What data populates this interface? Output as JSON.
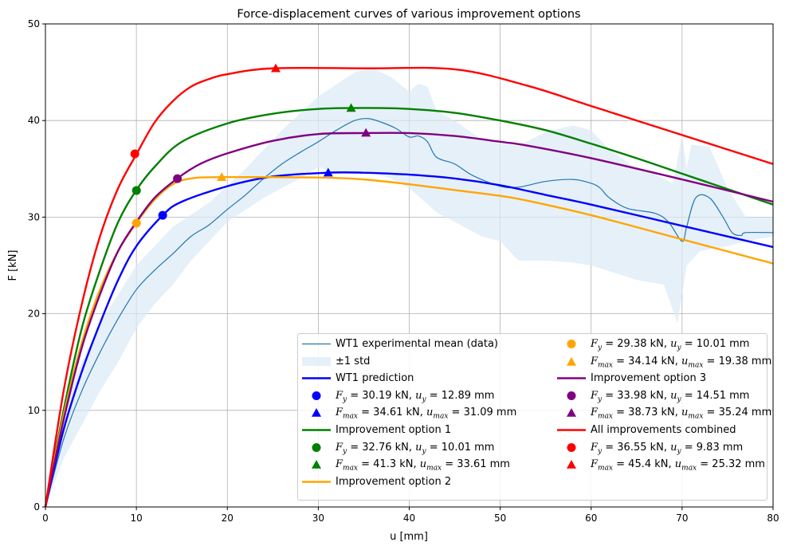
{
  "chart_data": {
    "type": "line",
    "title": "Force-displacement curves of various improvement options",
    "xlabel": "u [mm]",
    "ylabel": "F [kN]",
    "xlim": [
      0,
      80
    ],
    "ylim": [
      0,
      50
    ],
    "xticks": [
      0,
      10,
      20,
      30,
      40,
      50,
      60,
      70,
      80
    ],
    "yticks": [
      0,
      10,
      20,
      30,
      40,
      50
    ],
    "grid": true,
    "legend_placement": "lower-right",
    "experimental": {
      "name": "WT1 experimental mean (data)",
      "color": "#1f77b4",
      "points": [
        [
          0,
          0
        ],
        [
          2,
          7
        ],
        [
          4,
          12
        ],
        [
          6,
          16
        ],
        [
          8,
          19.5
        ],
        [
          10,
          22.5
        ],
        [
          12,
          24.5
        ],
        [
          14,
          26.2
        ],
        [
          16,
          28
        ],
        [
          18,
          29.2
        ],
        [
          20,
          30.8
        ],
        [
          22,
          32.3
        ],
        [
          24,
          34
        ],
        [
          26,
          35.5
        ],
        [
          28,
          36.7
        ],
        [
          30,
          37.8
        ],
        [
          32,
          39
        ],
        [
          34,
          40
        ],
        [
          35.5,
          40.2
        ],
        [
          37,
          39.8
        ],
        [
          38.5,
          39.2
        ],
        [
          40,
          38.3
        ],
        [
          41,
          38.4
        ],
        [
          42,
          37.8
        ],
        [
          43,
          36.2
        ],
        [
          45,
          35.5
        ],
        [
          47,
          34.3
        ],
        [
          50,
          33.2
        ],
        [
          52,
          33.1
        ],
        [
          55,
          33.7
        ],
        [
          58,
          33.9
        ],
        [
          60,
          33.5
        ],
        [
          61,
          33
        ],
        [
          62,
          32
        ],
        [
          64,
          30.9
        ],
        [
          67,
          30.4
        ],
        [
          68.5,
          29.5
        ],
        [
          70,
          27.5
        ],
        [
          70.5,
          29
        ],
        [
          71.5,
          32
        ],
        [
          73,
          32
        ],
        [
          74.5,
          30
        ],
        [
          75.5,
          28.4
        ],
        [
          76.5,
          28.1
        ],
        [
          77,
          28.4
        ],
        [
          80,
          28.4
        ]
      ]
    },
    "std_band": {
      "name": "±1 std",
      "color": "#dce9f5",
      "upper": [
        [
          0,
          0
        ],
        [
          2,
          10
        ],
        [
          4,
          15
        ],
        [
          6,
          19
        ],
        [
          8,
          22
        ],
        [
          10,
          25
        ],
        [
          14,
          29
        ],
        [
          18,
          31.5
        ],
        [
          22,
          35
        ],
        [
          26,
          39
        ],
        [
          30,
          42.5
        ],
        [
          34,
          45
        ],
        [
          36,
          45.4
        ],
        [
          38,
          44.5
        ],
        [
          40,
          43
        ],
        [
          41,
          43.8
        ],
        [
          42,
          43.5
        ],
        [
          43,
          41
        ],
        [
          45,
          40
        ],
        [
          48,
          38
        ],
        [
          50,
          37.6
        ],
        [
          52,
          37.4
        ],
        [
          55,
          38.8
        ],
        [
          58,
          39.5
        ],
        [
          60,
          39
        ],
        [
          62,
          37
        ],
        [
          65,
          35
        ],
        [
          67,
          34.5
        ],
        [
          69,
          33.5
        ],
        [
          70,
          38.5
        ],
        [
          70.5,
          35
        ],
        [
          71,
          37.5
        ],
        [
          73,
          37.3
        ],
        [
          75,
          33
        ],
        [
          77,
          30
        ],
        [
          80,
          30
        ]
      ],
      "lower": [
        [
          0,
          0
        ],
        [
          2,
          5
        ],
        [
          4,
          8.5
        ],
        [
          6,
          12
        ],
        [
          8,
          15
        ],
        [
          10,
          18.5
        ],
        [
          12,
          21
        ],
        [
          14,
          23
        ],
        [
          16,
          25.5
        ],
        [
          18,
          27.5
        ],
        [
          20,
          29.5
        ],
        [
          24,
          32
        ],
        [
          28,
          34
        ],
        [
          30,
          35.2
        ],
        [
          32,
          34.5
        ],
        [
          35,
          34.8
        ],
        [
          38,
          34
        ],
        [
          40,
          33
        ],
        [
          43,
          30.5
        ],
        [
          46,
          29
        ],
        [
          48,
          28
        ],
        [
          50,
          27.5
        ],
        [
          52,
          25.5
        ],
        [
          55,
          25.5
        ],
        [
          58,
          25.3
        ],
        [
          60,
          25
        ],
        [
          62,
          24.4
        ],
        [
          65,
          23.5
        ],
        [
          68,
          23
        ],
        [
          69.5,
          19
        ],
        [
          70.5,
          25
        ],
        [
          72,
          26.5
        ],
        [
          75,
          27
        ],
        [
          77,
          27.5
        ],
        [
          80,
          28
        ]
      ]
    },
    "series": [
      {
        "name": "WT1 prediction",
        "color": "#0000ff",
        "points": [
          [
            0,
            0
          ],
          [
            2,
            8
          ],
          [
            4,
            14
          ],
          [
            6,
            19
          ],
          [
            8,
            23.5
          ],
          [
            10,
            27
          ],
          [
            12.89,
            30.19
          ],
          [
            15,
            31.6
          ],
          [
            20,
            33.2
          ],
          [
            25,
            34.2
          ],
          [
            31,
            34.6
          ],
          [
            35,
            34.6
          ],
          [
            40,
            34.4
          ],
          [
            45,
            34
          ],
          [
            50,
            33.3
          ],
          [
            55,
            32.3
          ],
          [
            60,
            31.3
          ],
          [
            70,
            29.1
          ],
          [
            80,
            26.9
          ]
        ],
        "yield": {
          "F": 30.19,
          "u": 12.89,
          "label": "F_y = 30.19 kN, u_y = 12.89 mm"
        },
        "max": {
          "F": 34.61,
          "u": 31.09,
          "label": "F_max = 34.61 kN, u_max = 31.09 mm"
        }
      },
      {
        "name": "Improvement option 1",
        "color": "#008000",
        "points": [
          [
            0,
            0
          ],
          [
            2,
            10
          ],
          [
            4,
            18.5
          ],
          [
            6,
            24.5
          ],
          [
            8,
            29.5
          ],
          [
            10,
            32.8
          ],
          [
            12,
            35.2
          ],
          [
            15,
            37.8
          ],
          [
            20,
            39.7
          ],
          [
            25,
            40.7
          ],
          [
            30,
            41.2
          ],
          [
            35,
            41.3
          ],
          [
            40,
            41.2
          ],
          [
            45,
            40.8
          ],
          [
            50,
            40
          ],
          [
            55,
            39
          ],
          [
            60,
            37.6
          ],
          [
            65,
            36.1
          ],
          [
            70,
            34.5
          ],
          [
            75,
            32.9
          ],
          [
            80,
            31.3
          ]
        ],
        "yield": {
          "F": 32.76,
          "u": 10.01,
          "label": "F_y = 32.76 kN, u_y = 10.01 mm"
        },
        "max": {
          "F": 41.3,
          "u": 33.61,
          "label": "F_max = 41.3 kN, u_max = 33.61 mm"
        }
      },
      {
        "name": "Improvement option 2",
        "color": "#ffa500",
        "points": [
          [
            0,
            0
          ],
          [
            2,
            9.5
          ],
          [
            4,
            17
          ],
          [
            6,
            22.5
          ],
          [
            8,
            26.5
          ],
          [
            10,
            29.4
          ],
          [
            12,
            31.8
          ],
          [
            14,
            33.4
          ],
          [
            16,
            34
          ],
          [
            19.4,
            34.14
          ],
          [
            30,
            34.1
          ],
          [
            35,
            33.9
          ],
          [
            40,
            33.4
          ],
          [
            45,
            32.8
          ],
          [
            50,
            32.2
          ],
          [
            53,
            31.7
          ],
          [
            60,
            30.2
          ],
          [
            70,
            27.7
          ],
          [
            80,
            25.2
          ]
        ],
        "yield": {
          "F": 29.38,
          "u": 10.01,
          "label": "F_y = 29.38 kN, u_y = 10.01 mm"
        },
        "max": {
          "F": 34.14,
          "u": 19.38,
          "label": "F_max = 34.14 kN, u_max = 19.38 mm"
        }
      },
      {
        "name": "Improvement option 3",
        "color": "#800080",
        "points": [
          [
            0,
            0
          ],
          [
            2,
            9
          ],
          [
            4,
            16.5
          ],
          [
            6,
            22
          ],
          [
            8,
            26.5
          ],
          [
            10,
            29.5
          ],
          [
            12,
            32
          ],
          [
            14.5,
            34
          ],
          [
            17,
            35.5
          ],
          [
            20,
            36.6
          ],
          [
            25,
            37.9
          ],
          [
            30,
            38.6
          ],
          [
            35,
            38.7
          ],
          [
            40,
            38.7
          ],
          [
            45,
            38.4
          ],
          [
            50,
            37.8
          ],
          [
            53,
            37.4
          ],
          [
            60,
            36.1
          ],
          [
            70,
            33.9
          ],
          [
            80,
            31.6
          ]
        ],
        "yield": {
          "F": 33.98,
          "u": 14.51,
          "label": "F_y = 33.98 kN, u_y = 14.51 mm"
        },
        "max": {
          "F": 38.73,
          "u": 35.24,
          "label": "F_max = 38.73 kN, u_max = 35.24 mm"
        }
      },
      {
        "name": "All improvements combined",
        "color": "#ff0000",
        "points": [
          [
            0,
            0
          ],
          [
            2,
            12
          ],
          [
            4,
            21
          ],
          [
            6,
            28
          ],
          [
            8,
            33
          ],
          [
            10,
            36.5
          ],
          [
            12,
            39.8
          ],
          [
            14,
            42
          ],
          [
            16,
            43.5
          ],
          [
            18,
            44.3
          ],
          [
            20,
            44.8
          ],
          [
            25,
            45.4
          ],
          [
            35,
            45.4
          ],
          [
            45,
            45.3
          ],
          [
            53,
            43.6
          ],
          [
            60,
            41.5
          ],
          [
            70,
            38.5
          ],
          [
            80,
            35.5
          ]
        ],
        "yield": {
          "F": 36.55,
          "u": 9.83,
          "label": "F_y = 36.55 kN, u_y = 9.83 mm"
        },
        "max": {
          "F": 45.4,
          "u": 25.32,
          "label": "F_max = 45.4 kN, u_max = 25.32 mm"
        }
      }
    ]
  }
}
